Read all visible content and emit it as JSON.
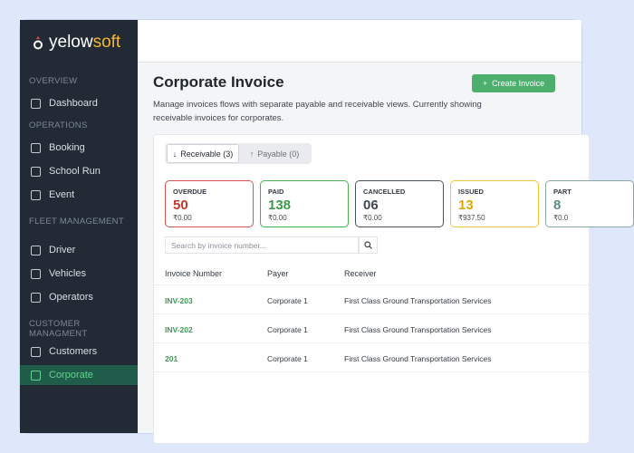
{
  "sidebar": {
    "logo_primary": "yelow",
    "logo_accent": "soft",
    "sections": [
      {
        "title": "OVERVIEW",
        "items": [
          {
            "label": "Dashboard"
          }
        ]
      },
      {
        "title": "OPERATIONS",
        "items": [
          {
            "label": "Booking"
          },
          {
            "label": "School Run"
          },
          {
            "label": "Event"
          }
        ]
      },
      {
        "title": "FLEET MANAGEMENT",
        "items": [
          {
            "label": "Driver"
          },
          {
            "label": "Vehicles"
          },
          {
            "label": "Operators"
          }
        ]
      },
      {
        "title": "CUSTOMER MANAGMENT",
        "items": [
          {
            "label": "Customers"
          },
          {
            "label": "Corporate",
            "active": true
          }
        ]
      }
    ]
  },
  "header": {
    "title": "Corporate Invoice",
    "description": "Manage invoices flows with separate payable and receivable views. Currently showing receivable invoices for corporates.",
    "button": "Create Invoice"
  },
  "tabs": [
    {
      "label": "Receivable (3)",
      "active": true
    },
    {
      "label": "Payable (0)"
    }
  ],
  "stats": [
    {
      "label": "OVERDUE",
      "value": "50",
      "amount": "₹0.00",
      "color": "#c0392b",
      "border": "#d9534f"
    },
    {
      "label": "PAID",
      "value": "138",
      "amount": "₹0.00",
      "color": "#3a9a4a",
      "border": "#4caf50"
    },
    {
      "label": "CANCELLED",
      "value": "06",
      "amount": "₹0.00",
      "color": "#3f4650",
      "border": "#4a525c"
    },
    {
      "label": "ISSUED",
      "value": "13",
      "amount": "₹937.50",
      "color": "#e0a800",
      "border": "#f0c43a"
    },
    {
      "label": "PART",
      "value": "8",
      "amount": "₹0.0",
      "color": "#5b8a86",
      "border": "#8aa7a4"
    }
  ],
  "search_placeholder": "Search by invoice number...",
  "table": {
    "columns": [
      "Invoice Number",
      "Payer",
      "Receiver"
    ],
    "rows": [
      [
        "INV-203",
        "Corporate 1",
        "First Class Ground Transportation Services"
      ],
      [
        "INV-202",
        "Corporate 1",
        "First Class Ground Transportation Services"
      ],
      [
        "201",
        "Corporate 1",
        "First Class Ground Transportation Services"
      ]
    ]
  }
}
